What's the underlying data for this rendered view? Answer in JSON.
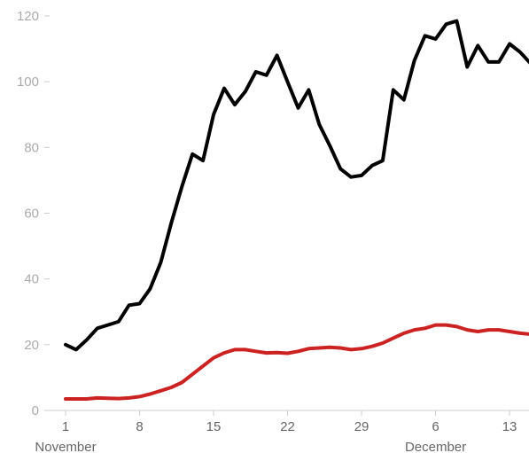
{
  "chart_data": {
    "type": "line",
    "x_start": "2020-11-01",
    "x_tick_labels": [
      {
        "label": "1",
        "day": 1
      },
      {
        "label": "8",
        "day": 8
      },
      {
        "label": "15",
        "day": 15
      },
      {
        "label": "22",
        "day": 22
      },
      {
        "label": "29",
        "day": 29
      },
      {
        "label": "6",
        "day": 36
      },
      {
        "label": "13",
        "day": 43
      }
    ],
    "x_group_labels": [
      {
        "label": "November",
        "day": 1
      },
      {
        "label": "December",
        "day": 36
      }
    ],
    "y_ticks": [
      0,
      20,
      40,
      60,
      80,
      100,
      120
    ],
    "ylim": [
      0,
      120
    ],
    "xlim": [
      1,
      44
    ],
    "grid": false,
    "series": [
      {
        "color": "#000000",
        "values": [
          20,
          18.5,
          21.5,
          25,
          26,
          27,
          32,
          32.5,
          37,
          45,
          57,
          68,
          78,
          76,
          90,
          98,
          93,
          97,
          103,
          102,
          108,
          100,
          92,
          97.5,
          87,
          80.5,
          73.5,
          71,
          71.5,
          74.5,
          76,
          97.5,
          94.5,
          106.5,
          114,
          113,
          117.5,
          118.5,
          104.5,
          111,
          106,
          106,
          111.5,
          109,
          105.5
        ]
      },
      {
        "color": "#cc2222",
        "values": [
          3.5,
          3.5,
          3.5,
          3.8,
          3.7,
          3.6,
          3.8,
          4.2,
          5,
          6,
          7,
          8.5,
          11,
          13.5,
          16,
          17.5,
          18.5,
          18.5,
          18,
          17.5,
          17.6,
          17.4,
          18,
          18.8,
          19,
          19.2,
          19,
          18.5,
          18.8,
          19.5,
          20.5,
          22,
          23.5,
          24.5,
          25,
          26,
          26,
          25.5,
          24.5,
          24,
          24.5,
          24.5,
          24,
          23.5,
          23.2
        ]
      }
    ]
  }
}
